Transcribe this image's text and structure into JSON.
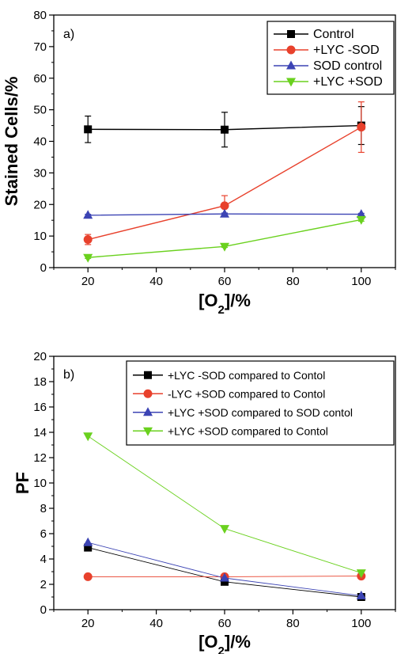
{
  "chart_data": [
    {
      "type": "line",
      "panel_label": "a)",
      "xlabel": "[O2]/%",
      "ylabel": "Stained Cells/%",
      "xlim": [
        10,
        110
      ],
      "ylim": [
        0,
        80
      ],
      "x_ticks": [
        "20",
        "40",
        "60",
        "80",
        "100"
      ],
      "y_ticks": [
        "0",
        "10",
        "20",
        "30",
        "40",
        "50",
        "60",
        "70",
        "80"
      ],
      "x": [
        20,
        60,
        100
      ],
      "legend_position": "top-right",
      "series": [
        {
          "name": "Control",
          "marker": "square",
          "color": "#000000",
          "values": [
            43.8,
            43.7,
            45.0
          ],
          "errors": [
            4.2,
            5.5,
            6.0
          ]
        },
        {
          "name": "+LYC -SOD",
          "marker": "circle",
          "color": "#e8412c",
          "values": [
            8.9,
            19.6,
            44.5
          ],
          "errors": [
            1.6,
            3.2,
            8.0
          ]
        },
        {
          "name": "SOD control",
          "marker": "triangle-up",
          "color": "#3c44b4",
          "values": [
            16.6,
            17.0,
            16.9
          ],
          "errors": [
            0.3,
            0.3,
            0.3
          ]
        },
        {
          "name": "+LYC +SOD",
          "marker": "triangle-down",
          "color": "#6ad11e",
          "values": [
            3.2,
            6.7,
            15.2
          ],
          "errors": [
            0.3,
            0.3,
            0.5
          ]
        }
      ]
    },
    {
      "type": "line",
      "panel_label": "b)",
      "xlabel": "[O2]/%",
      "ylabel": "PF",
      "xlim": [
        10,
        110
      ],
      "ylim": [
        0,
        20
      ],
      "x_ticks": [
        "20",
        "40",
        "60",
        "80",
        "100"
      ],
      "y_ticks": [
        "0",
        "2",
        "4",
        "6",
        "8",
        "10",
        "12",
        "14",
        "16",
        "18",
        "20"
      ],
      "x": [
        20,
        60,
        100
      ],
      "legend_position": "top-right",
      "series": [
        {
          "name": "+LYC -SOD compared to Contol",
          "marker": "square",
          "color": "#000000",
          "values": [
            4.9,
            2.2,
            1.0
          ]
        },
        {
          "name": "-LYC +SOD compared to Contol",
          "marker": "circle",
          "color": "#e8412c",
          "values": [
            2.6,
            2.6,
            2.65
          ]
        },
        {
          "name": "+LYC +SOD compared to SOD contol",
          "marker": "triangle-up",
          "color": "#3c44b4",
          "values": [
            5.3,
            2.5,
            1.1
          ]
        },
        {
          "name": "+LYC +SOD compared to Contol",
          "marker": "triangle-down",
          "color": "#6ad11e",
          "values": [
            13.7,
            6.4,
            2.9
          ]
        }
      ]
    }
  ]
}
